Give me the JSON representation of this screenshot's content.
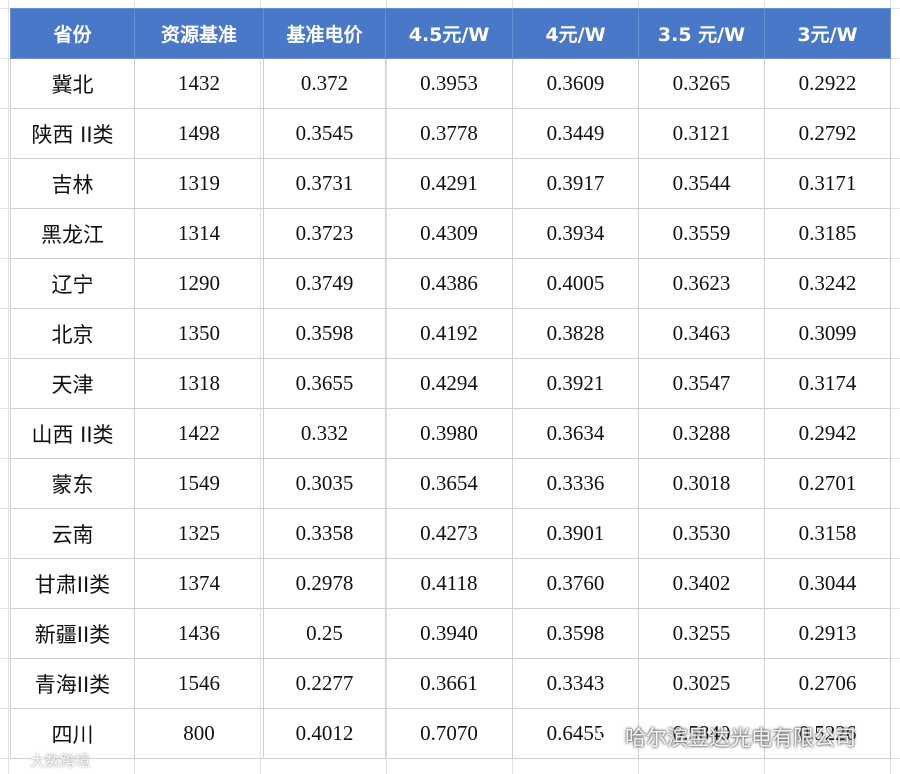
{
  "table": {
    "header": [
      "省份",
      "资源基准",
      "基准电价",
      "4.5元/W",
      "4元/W",
      "3.5 元/W",
      "3元/W"
    ],
    "rows": [
      [
        "冀北",
        "1432",
        "0.372",
        "0.3953",
        "0.3609",
        "0.3265",
        "0.2922"
      ],
      [
        "陕西 II类",
        "1498",
        "0.3545",
        "0.3778",
        "0.3449",
        "0.3121",
        "0.2792"
      ],
      [
        "吉林",
        "1319",
        "0.3731",
        "0.4291",
        "0.3917",
        "0.3544",
        "0.3171"
      ],
      [
        "黑龙江",
        "1314",
        "0.3723",
        "0.4309",
        "0.3934",
        "0.3559",
        "0.3185"
      ],
      [
        "辽宁",
        "1290",
        "0.3749",
        "0.4386",
        "0.4005",
        "0.3623",
        "0.3242"
      ],
      [
        "北京",
        "1350",
        "0.3598",
        "0.4192",
        "0.3828",
        "0.3463",
        "0.3099"
      ],
      [
        "天津",
        "1318",
        "0.3655",
        "0.4294",
        "0.3921",
        "0.3547",
        "0.3174"
      ],
      [
        "山西 II类",
        "1422",
        "0.332",
        "0.3980",
        "0.3634",
        "0.3288",
        "0.2942"
      ],
      [
        "蒙东",
        "1549",
        "0.3035",
        "0.3654",
        "0.3336",
        "0.3018",
        "0.2701"
      ],
      [
        "云南",
        "1325",
        "0.3358",
        "0.4273",
        "0.3901",
        "0.3530",
        "0.3158"
      ],
      [
        "甘肃II类",
        "1374",
        "0.2978",
        "0.4118",
        "0.3760",
        "0.3402",
        "0.3044"
      ],
      [
        "新疆II类",
        "1436",
        "0.25",
        "0.3940",
        "0.3598",
        "0.3255",
        "0.2913"
      ],
      [
        "青海II类",
        "1546",
        "0.2277",
        "0.3661",
        "0.3343",
        "0.3025",
        "0.2706"
      ],
      [
        "四川",
        "800",
        "0.4012",
        "0.7070",
        "0.6455",
        "0.5840",
        "0.5226"
      ]
    ]
  },
  "watermarks": [
    "哈尔滨昱达光电有限公司",
    "大数跨境"
  ]
}
